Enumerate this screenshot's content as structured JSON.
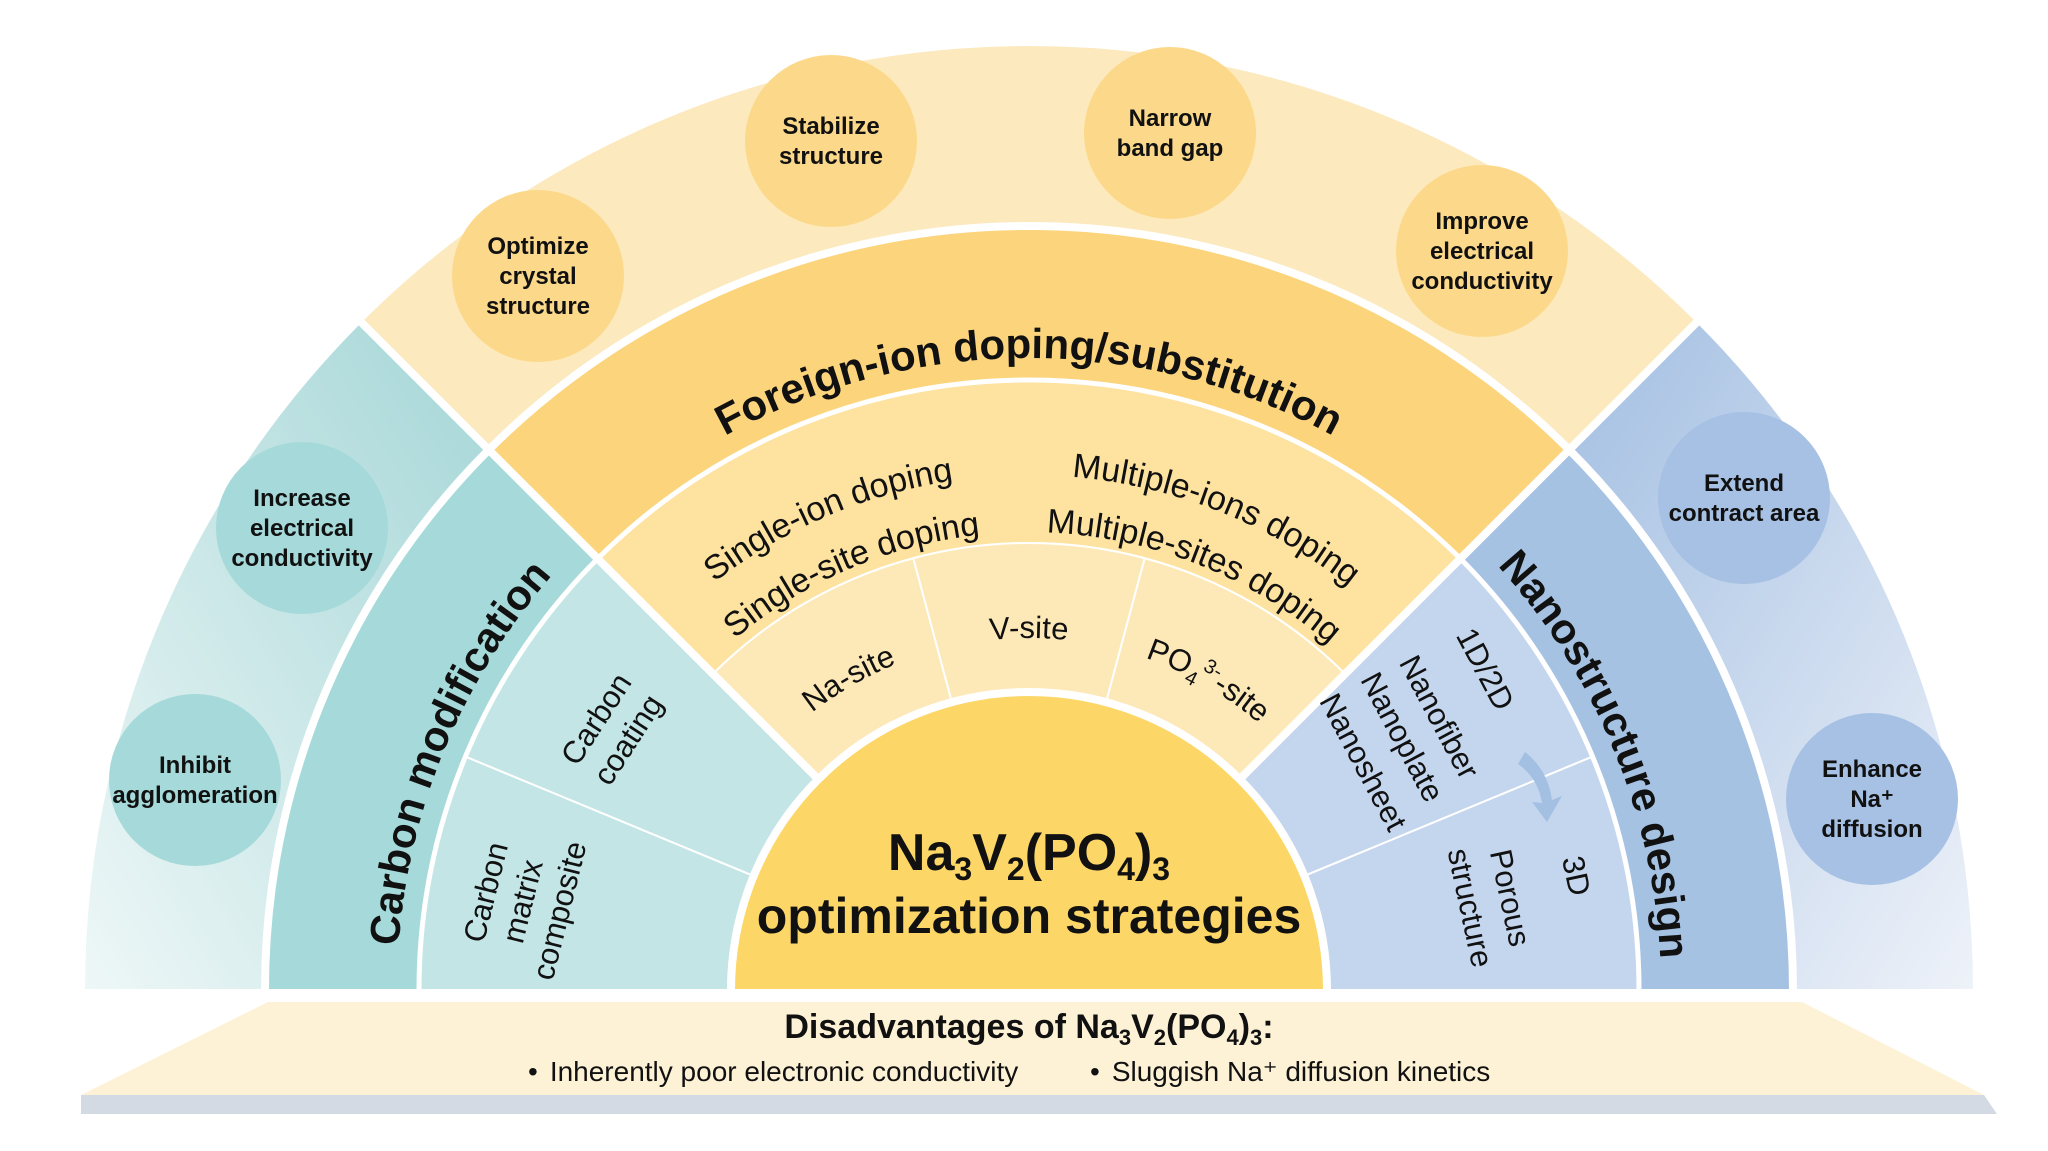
{
  "colors": {
    "center": "#fcd767",
    "foreign_ring": "#fbd47c",
    "doping_ring": "#fde2a0",
    "sites_ring": "#fde9b8",
    "outer_top": "#fce9bd",
    "top_circle": "#fcd98a",
    "carbon_ring": "#a6d9d9",
    "carbon_inner": "#c3e5e6",
    "left_circle": "#a6d9d9",
    "nano_ring": "#a6c2e3",
    "nano_inner": "#c4d6ee",
    "right_circle": "#a6c1e3",
    "base_top": "#fdf2d6",
    "base_bottom": "#d3dae4"
  },
  "center": {
    "formula": [
      "Na",
      "3",
      "V",
      "2",
      "(PO",
      "4",
      ")",
      "3"
    ],
    "subtitle": "optimization strategies"
  },
  "foreign": {
    "title": "Foreign-ion doping/substitution",
    "single_ion": "Single-ion doping",
    "single_site": "Single-site doping",
    "multiple_ions": "Multiple-ions doping",
    "multiple_sites": "Multiple-sites doping",
    "sites": {
      "na": "Na-site",
      "v": "V-site",
      "po4_main": "PO",
      "po4_sub": "4",
      "po4_sup": "3-",
      "po4_suffix": "-site"
    },
    "benefits": [
      {
        "lines": [
          "Optimize",
          "crystal",
          "structure"
        ]
      },
      {
        "lines": [
          "Stabilize",
          "structure"
        ]
      },
      {
        "lines": [
          "Narrow",
          "band gap"
        ]
      },
      {
        "lines": [
          "Improve",
          "electrical",
          "conductivity"
        ]
      }
    ]
  },
  "carbon": {
    "title": "Carbon modification",
    "coating": [
      "Carbon",
      "coating"
    ],
    "matrix": [
      "Carbon",
      "matrix",
      "composite"
    ],
    "benefits": [
      {
        "lines": [
          "Increase",
          "electrical",
          "conductivity"
        ]
      },
      {
        "lines": [
          "Inhibit",
          "agglomeration"
        ]
      }
    ]
  },
  "nano": {
    "title": "Nanostructure design",
    "low_dim": [
      "1D/2D",
      "Nanofiber",
      "Nanoplate",
      "Nanosheet"
    ],
    "three_d": [
      "3D",
      "Porous",
      "structure"
    ],
    "arrow_icon": "curved-arrow",
    "benefits": [
      {
        "lines": [
          "Extend",
          "contract area"
        ]
      },
      {
        "lines": [
          "Enhance",
          "Na⁺",
          "diffusion"
        ]
      }
    ]
  },
  "disadvantages": {
    "title_prefix": "Disadvantages of ",
    "formula": [
      "Na",
      "3",
      "V",
      "2",
      "(PO",
      "4",
      ")",
      "3",
      ":"
    ],
    "items": [
      "Inherently poor electronic conductivity",
      "Sluggish Na⁺ diffusion kinetics"
    ],
    "bullet": "•"
  }
}
